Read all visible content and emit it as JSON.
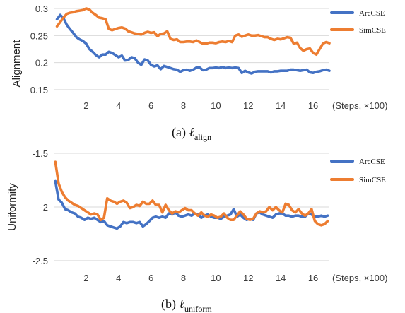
{
  "colors": {
    "ArcCSE": "#4472C4",
    "SimCSE": "#ED7D31"
  },
  "chart_data": [
    {
      "type": "line",
      "ylabel": "Alignment",
      "xunit": "(Steps, ×100)",
      "caption_prefix": "(a) ",
      "caption_symbol": "ℓ",
      "caption_sub": "align",
      "xlim": [
        0,
        17
      ],
      "ylim": [
        0.15,
        0.3
      ],
      "x_ticks": [
        "2",
        "4",
        "6",
        "8",
        "10",
        "12",
        "14",
        "16"
      ],
      "x_tick_values": [
        2,
        4,
        6,
        8,
        10,
        12,
        14,
        16
      ],
      "y_ticks": [
        "0.3",
        "0.25",
        "0.2",
        "0.15"
      ],
      "y_tick_values": [
        0.3,
        0.25,
        0.2,
        0.15
      ],
      "legend": [
        "ArcCSE",
        "SimCSE"
      ],
      "series": [
        {
          "name": "ArcCSE",
          "x": [
            0.2,
            0.4,
            0.6,
            0.8,
            1.0,
            1.2,
            1.4,
            1.6,
            1.8,
            2.0,
            2.2,
            2.4,
            2.6,
            2.8,
            3.0,
            3.2,
            3.4,
            3.6,
            3.8,
            4.0,
            4.2,
            4.4,
            4.6,
            4.8,
            5.0,
            5.2,
            5.4,
            5.6,
            5.8,
            6.0,
            6.2,
            6.4,
            6.6,
            6.8,
            7.0,
            7.2,
            7.4,
            7.6,
            7.8,
            8.0,
            8.2,
            8.4,
            8.6,
            8.8,
            9.0,
            9.2,
            9.4,
            9.6,
            9.8,
            10.0,
            10.2,
            10.4,
            10.6,
            10.8,
            11.0,
            11.2,
            11.4,
            11.6,
            11.8,
            12.0,
            12.2,
            12.4,
            12.6,
            12.8,
            13.0,
            13.2,
            13.4,
            13.6,
            13.8,
            14.0,
            14.2,
            14.4,
            14.6,
            14.8,
            15.0,
            15.2,
            15.4,
            15.6,
            15.8,
            16.0,
            16.2,
            16.4,
            16.6,
            16.8,
            17.0
          ],
          "values": [
            0.28,
            0.288,
            0.282,
            0.27,
            0.262,
            0.255,
            0.247,
            0.243,
            0.24,
            0.235,
            0.225,
            0.22,
            0.214,
            0.21,
            0.215,
            0.215,
            0.22,
            0.218,
            0.214,
            0.21,
            0.213,
            0.204,
            0.205,
            0.21,
            0.208,
            0.2,
            0.196,
            0.206,
            0.204,
            0.196,
            0.193,
            0.195,
            0.188,
            0.194,
            0.192,
            0.19,
            0.188,
            0.187,
            0.183,
            0.186,
            0.187,
            0.185,
            0.187,
            0.191,
            0.191,
            0.186,
            0.187,
            0.19,
            0.19,
            0.191,
            0.19,
            0.192,
            0.19,
            0.191,
            0.19,
            0.191,
            0.19,
            0.181,
            0.185,
            0.182,
            0.18,
            0.183,
            0.184,
            0.184,
            0.184,
            0.184,
            0.182,
            0.184,
            0.184,
            0.185,
            0.185,
            0.185,
            0.187,
            0.187,
            0.186,
            0.185,
            0.186,
            0.187,
            0.182,
            0.181,
            0.183,
            0.184,
            0.186,
            0.187,
            0.185
          ]
        },
        {
          "name": "SimCSE",
          "x": [
            0.2,
            0.4,
            0.6,
            0.8,
            1.0,
            1.2,
            1.4,
            1.6,
            1.8,
            2.0,
            2.2,
            2.4,
            2.6,
            2.8,
            3.0,
            3.2,
            3.4,
            3.6,
            3.8,
            4.0,
            4.2,
            4.4,
            4.6,
            4.8,
            5.0,
            5.2,
            5.4,
            5.6,
            5.8,
            6.0,
            6.2,
            6.4,
            6.6,
            6.8,
            7.0,
            7.2,
            7.4,
            7.6,
            7.8,
            8.0,
            8.2,
            8.4,
            8.6,
            8.8,
            9.0,
            9.2,
            9.4,
            9.6,
            9.8,
            10.0,
            10.2,
            10.4,
            10.6,
            10.8,
            11.0,
            11.2,
            11.4,
            11.6,
            11.8,
            12.0,
            12.2,
            12.4,
            12.6,
            12.8,
            13.0,
            13.2,
            13.4,
            13.6,
            13.8,
            14.0,
            14.2,
            14.4,
            14.6,
            14.8,
            15.0,
            15.2,
            15.4,
            15.6,
            15.8,
            16.0,
            16.2,
            16.4,
            16.6,
            16.8,
            17.0
          ],
          "values": [
            0.267,
            0.275,
            0.283,
            0.29,
            0.292,
            0.293,
            0.295,
            0.296,
            0.297,
            0.3,
            0.298,
            0.292,
            0.288,
            0.283,
            0.282,
            0.28,
            0.262,
            0.26,
            0.262,
            0.264,
            0.265,
            0.263,
            0.258,
            0.256,
            0.254,
            0.253,
            0.252,
            0.255,
            0.257,
            0.255,
            0.256,
            0.249,
            0.253,
            0.254,
            0.258,
            0.244,
            0.242,
            0.243,
            0.238,
            0.238,
            0.239,
            0.239,
            0.238,
            0.241,
            0.238,
            0.235,
            0.235,
            0.237,
            0.237,
            0.236,
            0.238,
            0.239,
            0.238,
            0.24,
            0.238,
            0.25,
            0.252,
            0.248,
            0.25,
            0.252,
            0.25,
            0.25,
            0.251,
            0.249,
            0.247,
            0.247,
            0.244,
            0.242,
            0.244,
            0.243,
            0.245,
            0.247,
            0.246,
            0.235,
            0.237,
            0.227,
            0.222,
            0.225,
            0.226,
            0.218,
            0.215,
            0.225,
            0.235,
            0.238,
            0.236
          ]
        }
      ]
    },
    {
      "type": "line",
      "ylabel": "Uniformity",
      "xunit": "(Steps, ×100)",
      "caption_prefix": "(b) ",
      "caption_symbol": "ℓ",
      "caption_sub": "uniform",
      "xlim": [
        0,
        17
      ],
      "ylim": [
        -2.5,
        -1.5
      ],
      "x_ticks": [
        "2",
        "4",
        "6",
        "8",
        "10",
        "12",
        "14",
        "16"
      ],
      "x_tick_values": [
        2,
        4,
        6,
        8,
        10,
        12,
        14,
        16
      ],
      "y_ticks": [
        "-1.5",
        "-2",
        "-2.5"
      ],
      "y_tick_values": [
        -1.5,
        -2,
        -2.5
      ],
      "legend": [
        "ArcCSE",
        "SimCSE"
      ],
      "series": [
        {
          "name": "ArcCSE",
          "x": [
            0.1,
            0.3,
            0.5,
            0.7,
            0.9,
            1.1,
            1.3,
            1.5,
            1.7,
            1.9,
            2.1,
            2.3,
            2.5,
            2.7,
            2.9,
            3.1,
            3.3,
            3.5,
            3.7,
            3.9,
            4.1,
            4.3,
            4.5,
            4.7,
            4.9,
            5.1,
            5.3,
            5.5,
            5.7,
            5.9,
            6.1,
            6.3,
            6.5,
            6.7,
            6.9,
            7.1,
            7.3,
            7.5,
            7.7,
            7.9,
            8.1,
            8.3,
            8.5,
            8.7,
            8.9,
            9.1,
            9.3,
            9.5,
            9.7,
            9.9,
            10.1,
            10.3,
            10.5,
            10.7,
            10.9,
            11.1,
            11.3,
            11.5,
            11.7,
            11.9,
            12.1,
            12.3,
            12.5,
            12.7,
            12.9,
            13.1,
            13.3,
            13.5,
            13.7,
            13.9,
            14.1,
            14.3,
            14.5,
            14.7,
            14.9,
            15.1,
            15.3,
            15.5,
            15.7,
            15.9,
            16.1,
            16.3,
            16.5,
            16.7,
            16.9
          ],
          "values": [
            -1.76,
            -1.93,
            -1.96,
            -2.02,
            -2.03,
            -2.05,
            -2.06,
            -2.09,
            -2.1,
            -2.12,
            -2.1,
            -2.11,
            -2.1,
            -2.12,
            -2.14,
            -2.13,
            -2.17,
            -2.18,
            -2.19,
            -2.2,
            -2.18,
            -2.14,
            -2.15,
            -2.14,
            -2.14,
            -2.15,
            -2.14,
            -2.18,
            -2.16,
            -2.13,
            -2.1,
            -2.09,
            -2.1,
            -2.09,
            -2.1,
            -2.06,
            -2.07,
            -2.05,
            -2.08,
            -2.09,
            -2.08,
            -2.07,
            -2.08,
            -2.06,
            -2.07,
            -2.1,
            -2.08,
            -2.07,
            -2.09,
            -2.1,
            -2.1,
            -2.11,
            -2.09,
            -2.08,
            -2.07,
            -2.02,
            -2.09,
            -2.07,
            -2.1,
            -2.12,
            -2.11,
            -2.12,
            -2.06,
            -2.05,
            -2.07,
            -2.08,
            -2.09,
            -2.1,
            -2.07,
            -2.06,
            -2.06,
            -2.08,
            -2.08,
            -2.09,
            -2.08,
            -2.08,
            -2.09,
            -2.09,
            -2.06,
            -2.07,
            -2.09,
            -2.09,
            -2.08,
            -2.09,
            -2.08
          ]
        },
        {
          "name": "SimCSE",
          "x": [
            0.1,
            0.3,
            0.5,
            0.7,
            0.9,
            1.1,
            1.3,
            1.5,
            1.7,
            1.9,
            2.1,
            2.3,
            2.5,
            2.7,
            2.9,
            3.1,
            3.3,
            3.5,
            3.7,
            3.9,
            4.1,
            4.3,
            4.5,
            4.7,
            4.9,
            5.1,
            5.3,
            5.5,
            5.7,
            5.9,
            6.1,
            6.3,
            6.5,
            6.7,
            6.9,
            7.1,
            7.3,
            7.5,
            7.7,
            7.9,
            8.1,
            8.3,
            8.5,
            8.7,
            8.9,
            9.1,
            9.3,
            9.5,
            9.7,
            9.9,
            10.1,
            10.3,
            10.5,
            10.7,
            10.9,
            11.1,
            11.3,
            11.5,
            11.7,
            11.9,
            12.1,
            12.3,
            12.5,
            12.7,
            12.9,
            13.1,
            13.3,
            13.5,
            13.7,
            13.9,
            14.1,
            14.3,
            14.5,
            14.7,
            14.9,
            15.1,
            15.3,
            15.5,
            15.7,
            15.9,
            16.1,
            16.3,
            16.5,
            16.7,
            16.9
          ],
          "values": [
            -1.58,
            -1.78,
            -1.86,
            -1.91,
            -1.94,
            -1.96,
            -1.98,
            -1.99,
            -2.01,
            -2.03,
            -2.05,
            -2.07,
            -2.06,
            -2.07,
            -2.12,
            -2.1,
            -1.92,
            -1.94,
            -1.95,
            -1.97,
            -1.95,
            -1.94,
            -1.96,
            -2.01,
            -2.0,
            -1.98,
            -1.99,
            -1.95,
            -1.97,
            -1.97,
            -1.94,
            -1.98,
            -1.98,
            -2.05,
            -1.98,
            -2.03,
            -2.06,
            -2.04,
            -2.05,
            -2.03,
            -2.01,
            -2.03,
            -2.03,
            -2.06,
            -2.08,
            -2.05,
            -2.08,
            -2.09,
            -2.07,
            -2.08,
            -2.1,
            -2.09,
            -2.06,
            -2.1,
            -2.12,
            -2.12,
            -2.08,
            -2.04,
            -2.07,
            -2.11,
            -2.12,
            -2.11,
            -2.06,
            -2.04,
            -2.05,
            -2.04,
            -2.0,
            -2.03,
            -2.0,
            -2.03,
            -2.05,
            -1.97,
            -1.98,
            -2.03,
            -2.05,
            -2.02,
            -2.06,
            -2.08,
            -2.06,
            -2.02,
            -2.13,
            -2.16,
            -2.17,
            -2.16,
            -2.13
          ]
        }
      ]
    }
  ]
}
